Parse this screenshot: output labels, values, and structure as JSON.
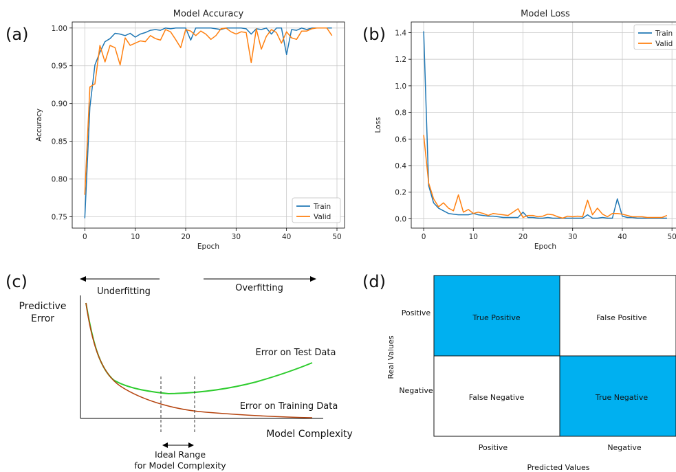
{
  "panels": {
    "a": "(a)",
    "b": "(b)",
    "c": "(c)",
    "d": "(d)"
  },
  "colors": {
    "train": "#1f77b4",
    "valid": "#ff7f0e",
    "grid": "#c8c8c8",
    "overfit_curve": "#2ecc2e",
    "fit_curve": "#b5440f",
    "tp_tn_fill": "#00b0f0"
  },
  "chart_data": [
    {
      "id": "accuracy",
      "type": "line",
      "title": "Model Accuracy",
      "xlabel": "Epoch",
      "ylabel": "Accuracy",
      "xlim": [
        -2.5,
        51.5
      ],
      "ylim": [
        0.735,
        1.008
      ],
      "xticks": [
        0,
        10,
        20,
        30,
        40,
        50
      ],
      "yticks": [
        0.75,
        0.8,
        0.85,
        0.9,
        0.95,
        1.0
      ],
      "ytick_labels": [
        "0.75",
        "0.80",
        "0.85",
        "0.90",
        "0.95",
        "1.00"
      ],
      "grid": true,
      "legend": "lower right",
      "series": [
        {
          "name": "Train",
          "color": "#1f77b4",
          "values": [
            0.748,
            0.895,
            0.951,
            0.968,
            0.982,
            0.986,
            0.993,
            0.992,
            0.99,
            0.993,
            0.988,
            0.992,
            0.994,
            0.997,
            0.998,
            0.997,
            1.0,
            0.999,
            1.0,
            1.0,
            1.0,
            0.984,
            1.0,
            1.0,
            1.0,
            1.0,
            0.999,
            0.998,
            1.0,
            1.0,
            1.0,
            1.0,
            0.999,
            0.992,
            0.999,
            0.998,
            1.0,
            0.992,
            1.0,
            1.0,
            0.965,
            0.998,
            0.997,
            1.0,
            0.998,
            1.0,
            1.0,
            1.0,
            1.0,
            1.0
          ]
        },
        {
          "name": "Valid",
          "color": "#ff7f0e",
          "values": [
            0.779,
            0.922,
            0.926,
            0.977,
            0.955,
            0.977,
            0.974,
            0.951,
            0.987,
            0.977,
            0.98,
            0.983,
            0.982,
            0.99,
            0.986,
            0.984,
            0.998,
            0.995,
            0.985,
            0.974,
            0.998,
            0.996,
            0.99,
            0.996,
            0.992,
            0.985,
            0.99,
            0.999,
            1.0,
            0.995,
            0.992,
            0.995,
            0.994,
            0.954,
            0.999,
            0.972,
            0.989,
            0.998,
            0.994,
            0.98,
            0.995,
            0.987,
            0.985,
            0.996,
            0.996,
            0.999,
            1.0,
            1.0,
            1.0,
            0.99
          ]
        }
      ]
    },
    {
      "id": "loss",
      "type": "line",
      "title": "Model Loss",
      "xlabel": "Epoch",
      "ylabel": "Loss",
      "xlim": [
        -2.5,
        51.5
      ],
      "ylim": [
        -0.07,
        1.48
      ],
      "xticks": [
        0,
        10,
        20,
        30,
        40,
        50
      ],
      "xtick_labels": [
        "0",
        "10",
        "20",
        "30",
        "40",
        "50"
      ],
      "yticks": [
        0.0,
        0.2,
        0.4,
        0.6,
        0.8,
        1.0,
        1.2,
        1.4
      ],
      "ytick_labels": [
        "0.0",
        "0.2",
        "0.4",
        "0.6",
        "0.8",
        "1.0",
        "1.2",
        "1.4"
      ],
      "grid": true,
      "legend": "upper right",
      "series": [
        {
          "name": "Train",
          "color": "#1f77b4",
          "values": [
            1.41,
            0.25,
            0.12,
            0.08,
            0.06,
            0.04,
            0.035,
            0.03,
            0.03,
            0.03,
            0.04,
            0.03,
            0.025,
            0.02,
            0.02,
            0.015,
            0.01,
            0.01,
            0.01,
            0.01,
            0.05,
            0.01,
            0.01,
            0.005,
            0.005,
            0.01,
            0.005,
            0.005,
            0.005,
            0.005,
            0.005,
            0.005,
            0.005,
            0.03,
            0.005,
            0.005,
            0.01,
            0.005,
            0.005,
            0.15,
            0.02,
            0.01,
            0.01,
            0.005,
            0.005,
            0.005,
            0.005,
            0.005,
            0.005,
            0.005
          ]
        },
        {
          "name": "Valid",
          "color": "#ff7f0e",
          "values": [
            0.63,
            0.27,
            0.15,
            0.09,
            0.12,
            0.08,
            0.06,
            0.18,
            0.05,
            0.07,
            0.04,
            0.05,
            0.04,
            0.025,
            0.04,
            0.035,
            0.03,
            0.025,
            0.05,
            0.075,
            0.01,
            0.025,
            0.025,
            0.015,
            0.02,
            0.035,
            0.03,
            0.015,
            0.005,
            0.02,
            0.015,
            0.02,
            0.015,
            0.14,
            0.03,
            0.08,
            0.035,
            0.015,
            0.04,
            0.04,
            0.035,
            0.025,
            0.015,
            0.015,
            0.015,
            0.01,
            0.01,
            0.01,
            0.01,
            0.025
          ]
        }
      ]
    },
    {
      "id": "bias_variance",
      "type": "line",
      "left_label": "Underfitting",
      "right_label": "Overfitting",
      "ylabel_line1": "Predictive",
      "ylabel_line2": "Error",
      "xlabel": "Model Complexity",
      "ideal_line1": "Ideal Range",
      "ideal_line2": "for Model Complexity",
      "series": [
        {
          "name": "Error on Test Data",
          "color": "#2ecc2e"
        },
        {
          "name": "Error on Training Data",
          "color": "#b5440f"
        }
      ]
    },
    {
      "id": "confusion_matrix",
      "type": "table",
      "xlabel": "Predicted Values",
      "ylabel": "Real Values",
      "col_labels": [
        "Positive",
        "Negative"
      ],
      "row_labels": [
        "Positive",
        "Negative"
      ],
      "cells": [
        [
          "True Positive",
          "False Positive"
        ],
        [
          "False Negative",
          "True Negative"
        ]
      ],
      "highlight": [
        [
          true,
          false
        ],
        [
          false,
          true
        ]
      ]
    }
  ]
}
